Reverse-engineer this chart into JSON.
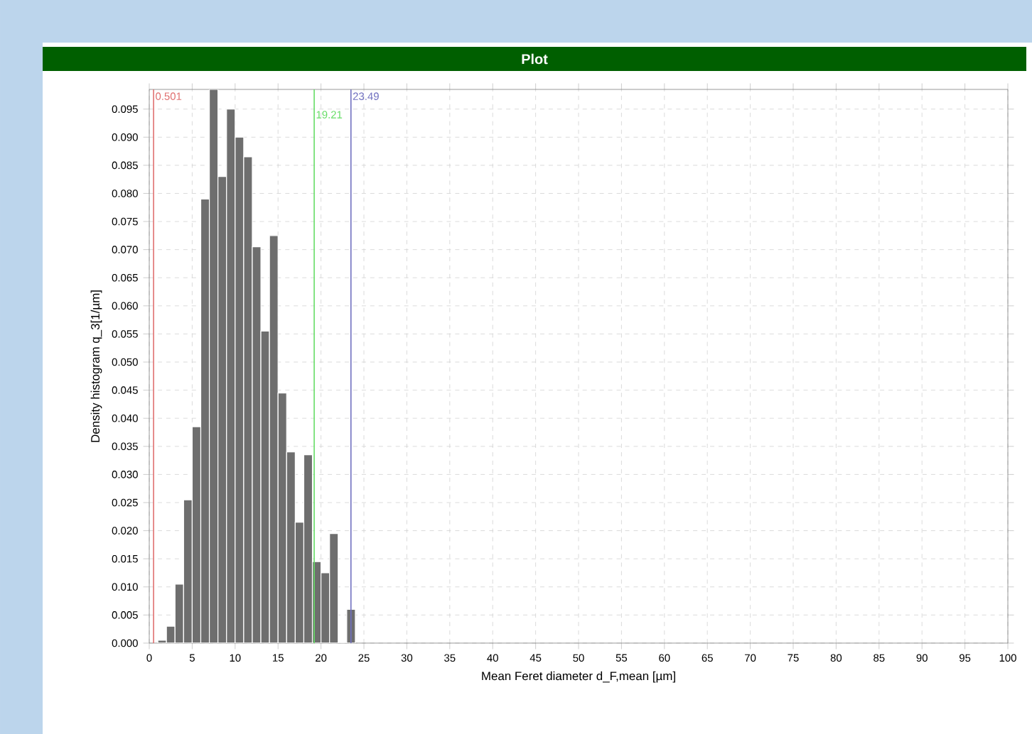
{
  "chart_data": {
    "type": "histogram",
    "title": "Plot",
    "xlabel": "Mean Feret diameter d_F,mean [µm]",
    "ylabel": "Density histogram q_3[1/µm]",
    "bins": [
      1,
      2,
      3,
      4,
      5,
      6,
      7,
      8,
      9,
      10,
      11,
      12,
      13,
      14,
      15,
      16,
      17,
      18,
      19,
      20,
      21,
      22,
      23,
      24
    ],
    "values": [
      0.0005,
      0.003,
      0.0105,
      0.0255,
      0.0385,
      0.079,
      0.0985,
      0.083,
      0.095,
      0.09,
      0.0865,
      0.0705,
      0.0555,
      0.0725,
      0.0445,
      0.034,
      0.0215,
      0.0335,
      0.0145,
      0.0125,
      0.0195,
      0,
      0.006
    ],
    "color": "#6e6e6e",
    "xlim": [
      0,
      100
    ],
    "ylim": [
      0,
      0.0985
    ],
    "xticks": [
      0,
      5,
      10,
      15,
      20,
      25,
      30,
      35,
      40,
      45,
      50,
      55,
      60,
      65,
      70,
      75,
      80,
      85,
      90,
      95,
      100
    ],
    "yticks": [
      {
        "value": 0,
        "label": "0.000"
      },
      {
        "value": 0.005,
        "label": "0.005"
      },
      {
        "value": 0.01,
        "label": "0.010"
      },
      {
        "value": 0.015,
        "label": "0.015"
      },
      {
        "value": 0.02,
        "label": "0.020"
      },
      {
        "value": 0.025,
        "label": "0.025"
      },
      {
        "value": 0.03,
        "label": "0.030"
      },
      {
        "value": 0.035,
        "label": "0.035"
      },
      {
        "value": 0.04,
        "label": "0.040"
      },
      {
        "value": 0.045,
        "label": "0.045"
      },
      {
        "value": 0.05,
        "label": "0.050"
      },
      {
        "value": 0.055,
        "label": "0.055"
      },
      {
        "value": 0.06,
        "label": "0.060"
      },
      {
        "value": 0.065,
        "label": "0.065"
      },
      {
        "value": 0.07,
        "label": "0.070"
      },
      {
        "value": 0.075,
        "label": "0.075"
      },
      {
        "value": 0.08,
        "label": "0.080"
      },
      {
        "value": 0.085,
        "label": "0.085"
      },
      {
        "value": 0.09,
        "label": "0.090"
      },
      {
        "value": 0.095,
        "label": "0.095"
      }
    ],
    "ref_lines": [
      {
        "axis": "x",
        "value": 0.501,
        "label": "0.501",
        "color": "#e07070"
      },
      {
        "axis": "x",
        "value": 19.21,
        "label": "19.21",
        "color": "#66dd66"
      },
      {
        "axis": "x",
        "value": 23.49,
        "label": "23.49",
        "color": "#7070c0"
      }
    ],
    "grid": true
  }
}
